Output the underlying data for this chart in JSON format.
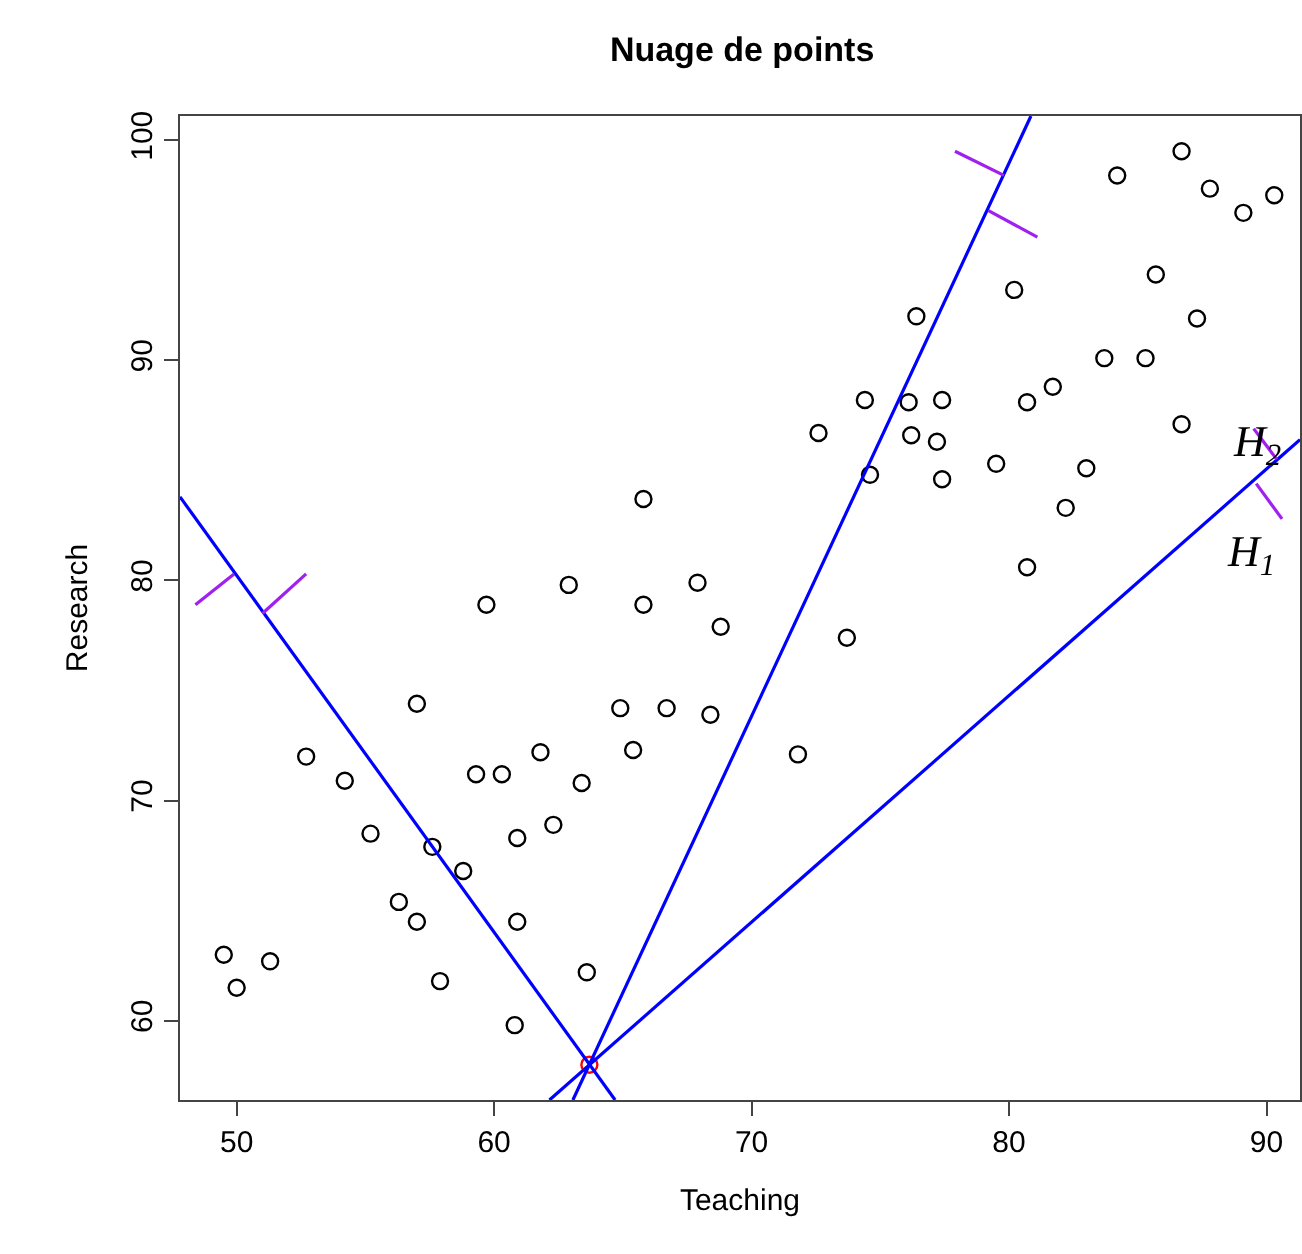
{
  "chart_data": {
    "type": "scatter",
    "title": "Nuage de points",
    "xlabel": "Teaching",
    "ylabel": "Research",
    "xlim": [
      47.8,
      91.3
    ],
    "ylim": [
      56.4,
      101.1
    ],
    "xticks": [
      50,
      60,
      70,
      80,
      90
    ],
    "yticks": [
      60,
      70,
      80,
      90,
      100
    ],
    "marker": "circle",
    "series": [
      {
        "color": "#000000",
        "x": [
          65.8,
          62.9,
          59.7,
          65.8,
          57.0,
          64.9,
          66.7,
          52.7,
          61.8,
          65.4,
          54.2,
          59.3,
          60.3,
          63.4,
          55.2,
          57.6,
          58.8,
          62.3,
          60.9,
          56.3,
          57.0,
          60.9,
          49.5,
          50.0,
          51.3,
          57.9,
          63.6,
          60.8,
          67.9,
          68.8,
          73.7,
          74.6,
          68.4,
          71.8,
          72.6,
          86.7,
          84.2,
          87.8,
          90.3,
          89.1,
          85.7,
          80.2,
          76.4,
          87.3,
          83.7,
          85.3,
          74.4,
          76.1,
          77.4,
          80.7,
          81.7,
          76.2,
          77.2,
          86.7,
          77.4,
          79.5,
          83.0,
          82.2,
          80.7
        ],
        "values": [
          83.7,
          79.8,
          78.9,
          78.9,
          74.4,
          74.2,
          74.2,
          72.0,
          72.2,
          72.3,
          70.9,
          71.2,
          71.2,
          70.8,
          68.5,
          67.9,
          66.8,
          68.9,
          68.3,
          65.4,
          64.5,
          64.5,
          63.0,
          61.5,
          62.7,
          61.8,
          62.2,
          59.8,
          79.9,
          77.9,
          77.4,
          84.8,
          73.9,
          72.1,
          86.7,
          99.5,
          98.4,
          97.8,
          97.5,
          96.7,
          93.9,
          93.2,
          92.0,
          91.9,
          90.1,
          90.1,
          88.2,
          88.1,
          88.2,
          88.1,
          88.8,
          86.6,
          86.3,
          87.1,
          84.6,
          85.3,
          85.1,
          83.3,
          80.6
        ]
      },
      {
        "type": "scatter",
        "color": "#ff0000",
        "x": [
          63.7
        ],
        "values": [
          58.0
        ]
      },
      {
        "type": "line",
        "color": "#0000ff",
        "marker": "none",
        "x": [
          47.8,
          64.7
        ],
        "values": [
          83.8,
          56.4
        ]
      },
      {
        "type": "line",
        "color": "#0000ff",
        "marker": "none",
        "x": [
          63.06,
          80.85
        ],
        "values": [
          56.4,
          101.1
        ]
      },
      {
        "type": "line",
        "color": "#0000ff",
        "marker": "none",
        "x": [
          62.15,
          91.3
        ],
        "values": [
          56.4,
          86.4
        ]
      },
      {
        "type": "line",
        "color": "#a020f0",
        "marker": "none",
        "x": [
          49.9,
          48.4
        ],
        "values": [
          80.3,
          78.9
        ]
      },
      {
        "type": "line",
        "color": "#a020f0",
        "marker": "none",
        "x": [
          51.0,
          52.7
        ],
        "values": [
          78.5,
          80.3
        ]
      },
      {
        "type": "line",
        "color": "#a020f0",
        "marker": "none",
        "x": [
          79.8,
          77.9
        ],
        "values": [
          98.4,
          99.5
        ]
      },
      {
        "type": "line",
        "color": "#a020f0",
        "marker": "none",
        "x": [
          79.2,
          81.1
        ],
        "values": [
          96.8,
          95.6
        ]
      },
      {
        "type": "line",
        "color": "#a020f0",
        "marker": "none",
        "x": [
          90.4,
          89.5
        ],
        "values": [
          85.5,
          86.9
        ]
      },
      {
        "type": "line",
        "color": "#a020f0",
        "marker": "none",
        "x": [
          89.6,
          90.6
        ],
        "values": [
          84.4,
          82.8
        ]
      }
    ],
    "annotations": [
      "H$_{2}$",
      "H$_{1}$"
    ]
  }
}
